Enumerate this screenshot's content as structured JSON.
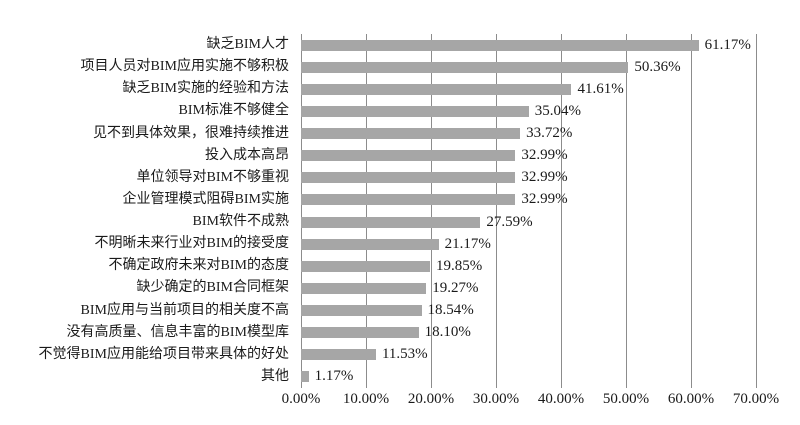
{
  "chart_data": {
    "type": "bar",
    "orientation": "horizontal",
    "title": "",
    "categories": [
      "缺乏BIM人才",
      "项目人员对BIM应用实施不够积极",
      "缺乏BIM实施的经验和方法",
      "BIM标准不够健全",
      "见不到具体效果，很难持续推进",
      "投入成本高昂",
      "单位领导对BIM不够重视",
      "企业管理模式阻碍BIM实施",
      "BIM软件不成熟",
      "不明晰未来行业对BIM的接受度",
      "不确定政府未来对BIM的态度",
      "缺少确定的BIM合同框架",
      "BIM应用与当前项目的相关度不高",
      "没有高质量、信息丰富的BIM模型库",
      "不觉得BIM应用能给项目带来具体的好处",
      "其他"
    ],
    "values": [
      61.17,
      50.36,
      41.61,
      35.04,
      33.72,
      32.99,
      32.99,
      32.99,
      27.59,
      21.17,
      19.85,
      19.27,
      18.54,
      18.1,
      11.53,
      1.17
    ],
    "value_labels": [
      "61.17%",
      "50.36%",
      "41.61%",
      "35.04%",
      "33.72%",
      "32.99%",
      "32.99%",
      "32.99%",
      "27.59%",
      "21.17%",
      "19.85%",
      "19.27%",
      "18.54%",
      "18.10%",
      "11.53%",
      "1.17%"
    ],
    "x_ticks": [
      "0.00%",
      "10.00%",
      "20.00%",
      "30.00%",
      "40.00%",
      "50.00%",
      "60.00%",
      "70.00%"
    ],
    "xlim": [
      0,
      70
    ],
    "grid": true,
    "legend": "none",
    "colors": {
      "bar": "#a6a6a6",
      "gridline": "#8c8c8c",
      "text": "#1a1a1a",
      "background": "#ffffff"
    }
  }
}
